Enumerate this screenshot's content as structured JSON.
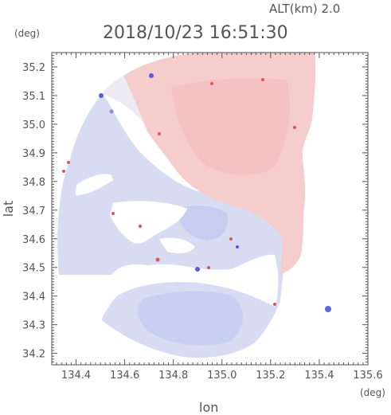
{
  "header": {
    "altitude_label": "ALT(km)  2.0",
    "unit_label": "(deg)",
    "timestamp": "2018/10/23  16:51:30"
  },
  "axes": {
    "xlabel": "lon",
    "ylabel": "lat",
    "x_unit": "(deg)",
    "xlim": [
      134.3,
      135.6
    ],
    "ylim": [
      34.16,
      35.25
    ],
    "x_ticks": [
      "134.4",
      "134.6",
      "134.8",
      "135.0",
      "135.2",
      "135.4",
      "135.6"
    ],
    "y_ticks": [
      "35.2",
      "35.1",
      "35.0",
      "34.9",
      "34.8",
      "34.7",
      "34.6",
      "34.5",
      "34.4",
      "34.3",
      "34.2"
    ]
  },
  "field": {
    "description_colors": {
      "positive": "#f7cfcf",
      "positive_strong": "#f3bcbc",
      "near_zero": "#ecebf3",
      "negative": "#d6dbf3",
      "negative_strong": "#c3c9ef",
      "speckle_red": "#e05656",
      "speckle_blue": "#5a5ad8"
    }
  }
}
